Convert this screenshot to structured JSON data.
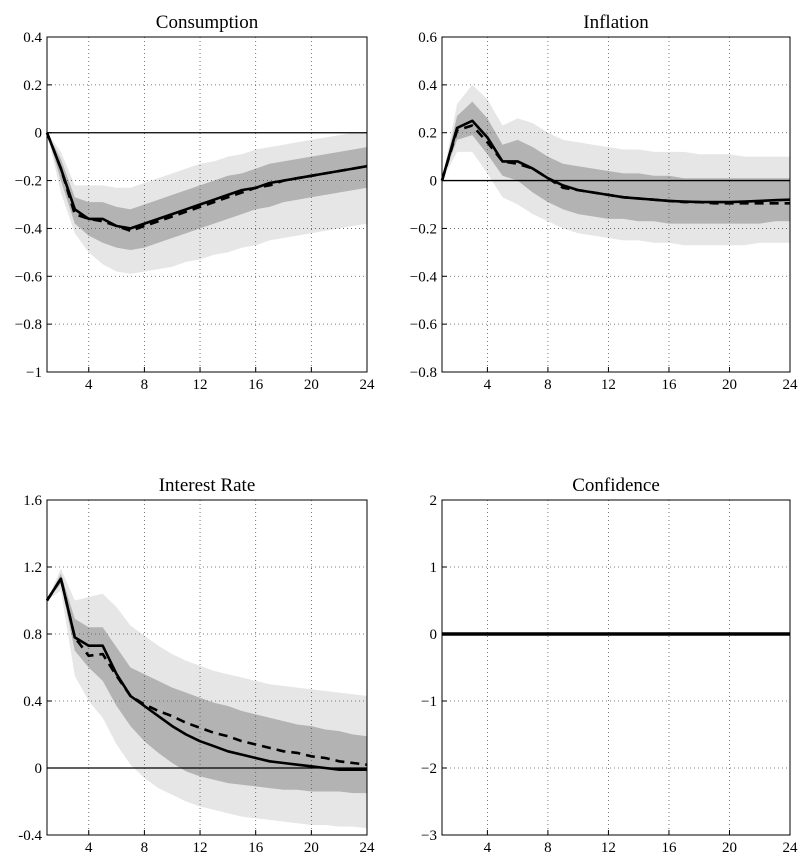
{
  "chart_data": [
    {
      "type": "line",
      "title": "Consumption",
      "x": [
        1,
        2,
        3,
        4,
        5,
        6,
        7,
        8,
        9,
        10,
        11,
        12,
        13,
        14,
        15,
        16,
        17,
        18,
        19,
        20,
        21,
        22,
        23,
        24
      ],
      "xticks": [
        4,
        8,
        12,
        16,
        20,
        24
      ],
      "yticks": [
        0.4,
        0.2,
        0,
        -0.2,
        -0.4,
        -0.6,
        -0.8,
        -1
      ],
      "ytick_labels": [
        "0.4",
        "0.2",
        "0",
        "−0.2",
        "−0.4",
        "−0.6",
        "−0.8",
        "−1"
      ],
      "xlim": [
        1,
        24
      ],
      "ylim": [
        -1,
        0.4
      ],
      "grid": true,
      "series": [
        {
          "style": "solid",
          "values": [
            0,
            -0.15,
            -0.32,
            -0.36,
            -0.36,
            -0.39,
            -0.4,
            -0.38,
            -0.36,
            -0.34,
            -0.32,
            -0.3,
            -0.28,
            -0.26,
            -0.24,
            -0.23,
            -0.21,
            -0.2,
            -0.19,
            -0.18,
            -0.17,
            -0.16,
            -0.15,
            -0.14
          ]
        },
        {
          "style": "dashed",
          "values": [
            0,
            -0.15,
            -0.34,
            -0.36,
            -0.37,
            -0.39,
            -0.41,
            -0.39,
            -0.37,
            -0.35,
            -0.33,
            -0.31,
            -0.29,
            -0.27,
            -0.25,
            -0.23,
            -0.22,
            -0.2,
            -0.19,
            -0.18,
            -0.17,
            -0.16,
            -0.15,
            -0.14
          ]
        }
      ],
      "bands": [
        {
          "level": "outer",
          "lower": [
            0,
            -0.25,
            -0.42,
            -0.5,
            -0.55,
            -0.58,
            -0.59,
            -0.58,
            -0.57,
            -0.56,
            -0.54,
            -0.53,
            -0.51,
            -0.5,
            -0.48,
            -0.47,
            -0.45,
            -0.44,
            -0.43,
            -0.42,
            -0.41,
            -0.4,
            -0.39,
            -0.38
          ],
          "upper": [
            0,
            -0.08,
            -0.22,
            -0.22,
            -0.22,
            -0.23,
            -0.23,
            -0.21,
            -0.19,
            -0.17,
            -0.15,
            -0.13,
            -0.12,
            -0.1,
            -0.09,
            -0.07,
            -0.06,
            -0.05,
            -0.04,
            -0.03,
            -0.02,
            -0.01,
            0.0,
            0.0
          ]
        },
        {
          "level": "inner",
          "lower": [
            0,
            -0.2,
            -0.38,
            -0.43,
            -0.46,
            -0.48,
            -0.49,
            -0.48,
            -0.46,
            -0.44,
            -0.42,
            -0.4,
            -0.38,
            -0.36,
            -0.34,
            -0.32,
            -0.31,
            -0.29,
            -0.28,
            -0.27,
            -0.26,
            -0.25,
            -0.24,
            -0.23
          ],
          "upper": [
            0,
            -0.11,
            -0.27,
            -0.29,
            -0.29,
            -0.31,
            -0.32,
            -0.3,
            -0.28,
            -0.26,
            -0.24,
            -0.22,
            -0.2,
            -0.18,
            -0.17,
            -0.15,
            -0.13,
            -0.12,
            -0.11,
            -0.1,
            -0.09,
            -0.08,
            -0.07,
            -0.06
          ]
        }
      ]
    },
    {
      "type": "line",
      "title": "Inflation",
      "x": [
        1,
        2,
        3,
        4,
        5,
        6,
        7,
        8,
        9,
        10,
        11,
        12,
        13,
        14,
        15,
        16,
        17,
        18,
        19,
        20,
        21,
        22,
        23,
        24
      ],
      "xticks": [
        4,
        8,
        12,
        16,
        20,
        24
      ],
      "yticks": [
        0.6,
        0.4,
        0.2,
        0,
        -0.2,
        -0.4,
        -0.6,
        -0.8
      ],
      "ytick_labels": [
        "0.6",
        "0.4",
        "0.2",
        "0",
        "−0.2",
        "−0.4",
        "−0.6",
        "−0.8"
      ],
      "xlim": [
        1,
        24
      ],
      "ylim": [
        -0.8,
        0.6
      ],
      "grid": true,
      "series": [
        {
          "style": "solid",
          "values": [
            0,
            0.22,
            0.25,
            0.18,
            0.08,
            0.08,
            0.05,
            0.01,
            -0.02,
            -0.04,
            -0.05,
            -0.06,
            -0.07,
            -0.075,
            -0.08,
            -0.085,
            -0.088,
            -0.09,
            -0.09,
            -0.09,
            -0.088,
            -0.085,
            -0.082,
            -0.08
          ]
        },
        {
          "style": "dashed",
          "values": [
            0,
            0.21,
            0.23,
            0.16,
            0.08,
            0.07,
            0.05,
            0.01,
            -0.03,
            -0.04,
            -0.05,
            -0.06,
            -0.07,
            -0.075,
            -0.08,
            -0.085,
            -0.09,
            -0.09,
            -0.095,
            -0.095,
            -0.095,
            -0.095,
            -0.095,
            -0.095
          ]
        }
      ],
      "bands": [
        {
          "level": "outer",
          "lower": [
            0,
            0.12,
            0.12,
            0.03,
            -0.07,
            -0.1,
            -0.14,
            -0.17,
            -0.2,
            -0.22,
            -0.23,
            -0.24,
            -0.25,
            -0.25,
            -0.26,
            -0.26,
            -0.27,
            -0.27,
            -0.27,
            -0.27,
            -0.27,
            -0.26,
            -0.26,
            -0.26
          ],
          "upper": [
            0,
            0.32,
            0.4,
            0.34,
            0.23,
            0.26,
            0.24,
            0.2,
            0.17,
            0.16,
            0.15,
            0.14,
            0.13,
            0.13,
            0.12,
            0.12,
            0.12,
            0.11,
            0.11,
            0.11,
            0.1,
            0.1,
            0.1,
            0.1
          ]
        },
        {
          "level": "inner",
          "lower": [
            0,
            0.17,
            0.19,
            0.11,
            0.02,
            0.0,
            -0.05,
            -0.09,
            -0.12,
            -0.14,
            -0.15,
            -0.16,
            -0.16,
            -0.17,
            -0.17,
            -0.18,
            -0.18,
            -0.18,
            -0.18,
            -0.18,
            -0.18,
            -0.18,
            -0.17,
            -0.17
          ],
          "upper": [
            0,
            0.27,
            0.33,
            0.26,
            0.15,
            0.17,
            0.14,
            0.1,
            0.07,
            0.06,
            0.05,
            0.04,
            0.03,
            0.03,
            0.02,
            0.02,
            0.01,
            0.01,
            0.01,
            0.01,
            0.01,
            0.01,
            0.01,
            0.01
          ]
        }
      ]
    },
    {
      "type": "line",
      "title": "Interest Rate",
      "x": [
        1,
        2,
        3,
        4,
        5,
        6,
        7,
        8,
        9,
        10,
        11,
        12,
        13,
        14,
        15,
        16,
        17,
        18,
        19,
        20,
        21,
        22,
        23,
        24
      ],
      "xticks": [
        4,
        8,
        12,
        16,
        20,
        24
      ],
      "yticks": [
        1.6,
        1.2,
        0.8,
        0.4,
        0,
        -0.4
      ],
      "ytick_labels": [
        "1.6",
        "1.2",
        "0.8",
        "0.4",
        "0",
        "-0.4"
      ],
      "xlim": [
        1,
        24
      ],
      "ylim": [
        -0.4,
        1.6
      ],
      "grid": true,
      "series": [
        {
          "style": "solid",
          "values": [
            1.0,
            1.13,
            0.78,
            0.73,
            0.73,
            0.56,
            0.43,
            0.37,
            0.31,
            0.25,
            0.2,
            0.16,
            0.13,
            0.1,
            0.08,
            0.06,
            0.04,
            0.03,
            0.02,
            0.01,
            0.0,
            -0.01,
            -0.01,
            -0.01
          ]
        },
        {
          "style": "dashed",
          "values": [
            1.0,
            1.13,
            0.78,
            0.67,
            0.68,
            0.55,
            0.43,
            0.38,
            0.34,
            0.31,
            0.27,
            0.24,
            0.21,
            0.19,
            0.16,
            0.14,
            0.12,
            0.1,
            0.09,
            0.07,
            0.06,
            0.04,
            0.03,
            0.02
          ]
        }
      ],
      "bands": [
        {
          "level": "outer",
          "lower": [
            1.0,
            1.06,
            0.55,
            0.4,
            0.3,
            0.14,
            0.02,
            -0.06,
            -0.12,
            -0.16,
            -0.2,
            -0.23,
            -0.25,
            -0.27,
            -0.29,
            -0.3,
            -0.31,
            -0.32,
            -0.33,
            -0.34,
            -0.34,
            -0.35,
            -0.35,
            -0.36
          ],
          "upper": [
            1.0,
            1.19,
            1.0,
            1.02,
            1.04,
            0.96,
            0.85,
            0.79,
            0.73,
            0.68,
            0.64,
            0.61,
            0.58,
            0.56,
            0.54,
            0.52,
            0.5,
            0.49,
            0.48,
            0.47,
            0.46,
            0.45,
            0.44,
            0.43
          ]
        },
        {
          "level": "inner",
          "lower": [
            1.0,
            1.1,
            0.7,
            0.6,
            0.52,
            0.37,
            0.25,
            0.16,
            0.09,
            0.03,
            -0.02,
            -0.05,
            -0.07,
            -0.09,
            -0.1,
            -0.11,
            -0.12,
            -0.13,
            -0.13,
            -0.14,
            -0.14,
            -0.14,
            -0.15,
            -0.15
          ],
          "upper": [
            1.0,
            1.16,
            0.89,
            0.84,
            0.84,
            0.72,
            0.6,
            0.56,
            0.52,
            0.48,
            0.45,
            0.42,
            0.39,
            0.37,
            0.34,
            0.32,
            0.3,
            0.28,
            0.26,
            0.25,
            0.23,
            0.22,
            0.2,
            0.19
          ]
        }
      ]
    },
    {
      "type": "line",
      "title": "Confidence",
      "x": [
        1,
        2,
        3,
        4,
        5,
        6,
        7,
        8,
        9,
        10,
        11,
        12,
        13,
        14,
        15,
        16,
        17,
        18,
        19,
        20,
        21,
        22,
        23,
        24
      ],
      "xticks": [
        4,
        8,
        12,
        16,
        20,
        24
      ],
      "yticks": [
        2,
        1,
        0,
        -1,
        -2,
        -3
      ],
      "ytick_labels": [
        "2",
        "1",
        "0",
        "−1",
        "−2",
        "−3"
      ],
      "xlim": [
        1,
        24
      ],
      "ylim": [
        -3,
        2
      ],
      "grid": true,
      "series": [
        {
          "style": "solid",
          "values": [
            0,
            0,
            0,
            0,
            0,
            0,
            0,
            0,
            0,
            0,
            0,
            0,
            0,
            0,
            0,
            0,
            0,
            0,
            0,
            0,
            0,
            0,
            0,
            0
          ]
        }
      ],
      "bands": []
    }
  ]
}
